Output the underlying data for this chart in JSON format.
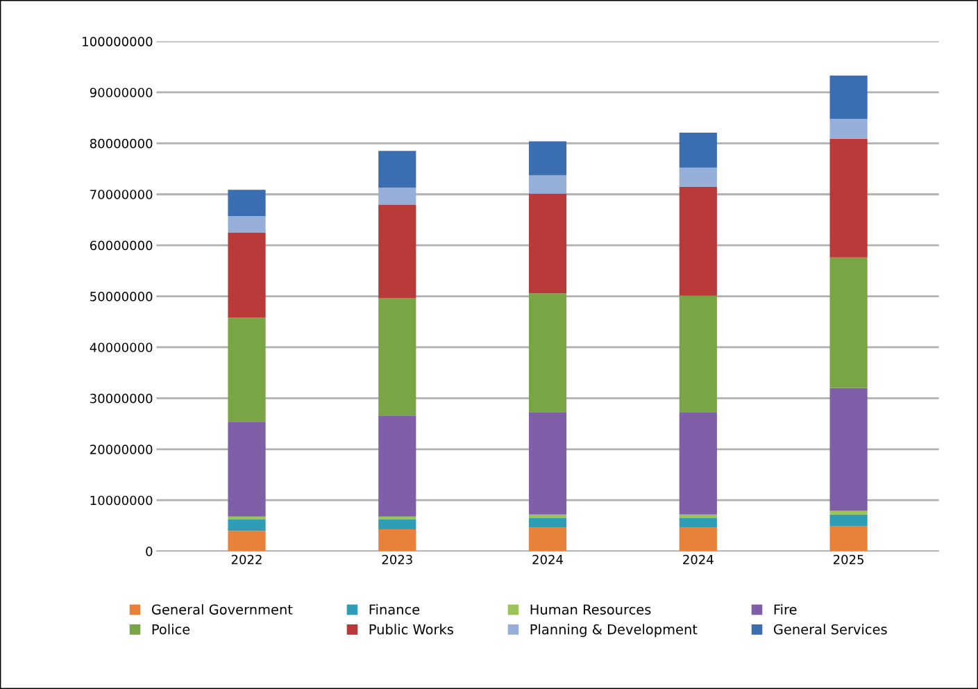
{
  "chart_data": {
    "type": "bar",
    "stacked": true,
    "categories": [
      "2022",
      "2023",
      "2024",
      "2024",
      "2025"
    ],
    "series": [
      {
        "name": "General Government",
        "color": "#e8823a",
        "values": [
          4000000,
          4300000,
          4600000,
          4600000,
          5000000
        ]
      },
      {
        "name": "Finance",
        "color": "#2f9db5",
        "values": [
          2200000,
          1900000,
          1900000,
          1900000,
          2200000
        ]
      },
      {
        "name": "Human Resources",
        "color": "#9bc35a",
        "values": [
          600000,
          600000,
          700000,
          700000,
          700000
        ]
      },
      {
        "name": "Fire",
        "color": "#7f5fa8",
        "values": [
          18500000,
          19800000,
          20100000,
          20100000,
          24100000
        ]
      },
      {
        "name": "Police",
        "color": "#79a545",
        "values": [
          20500000,
          23000000,
          23300000,
          22800000,
          25600000
        ]
      },
      {
        "name": "Public Works",
        "color": "#b83b3a",
        "values": [
          16700000,
          18400000,
          19500000,
          21400000,
          23300000
        ]
      },
      {
        "name": "Planning & Development",
        "color": "#95afd8",
        "values": [
          3200000,
          3300000,
          3600000,
          3700000,
          3900000
        ]
      },
      {
        "name": "General Services",
        "color": "#3a6eb0",
        "values": [
          5200000,
          7200000,
          6700000,
          6900000,
          8500000
        ]
      }
    ],
    "ylim": [
      0,
      100000000
    ],
    "yticks": [
      0,
      10000000,
      20000000,
      30000000,
      40000000,
      50000000,
      60000000,
      70000000,
      80000000,
      90000000,
      100000000
    ],
    "grid": "y",
    "legend": "bottom"
  }
}
